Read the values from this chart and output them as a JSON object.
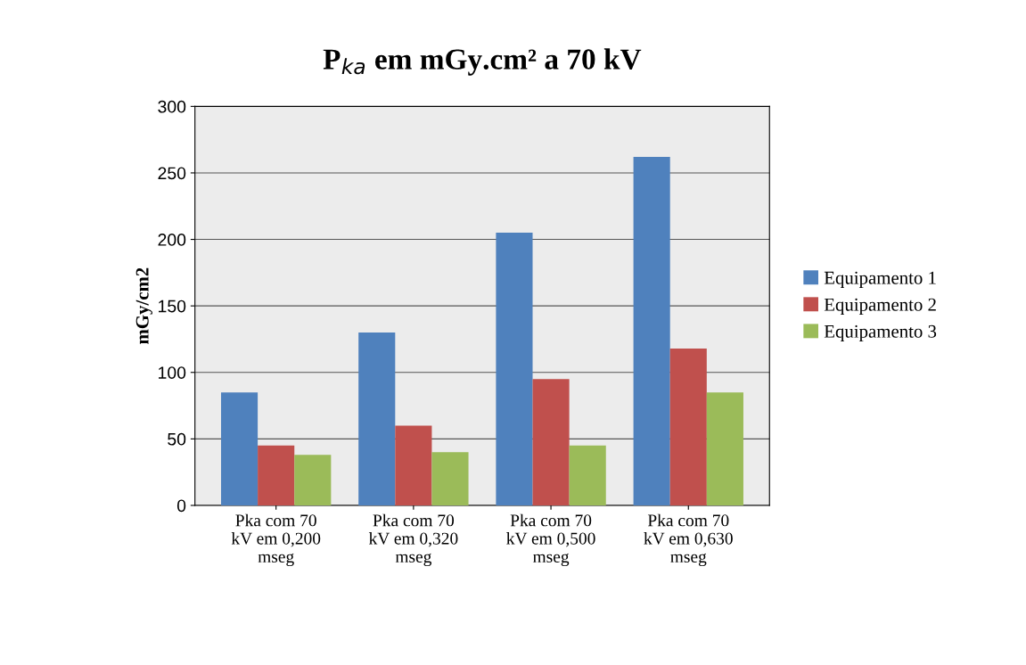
{
  "chart_data": {
    "type": "bar",
    "title": "P$_{ka}$ em mGy.cm² a 70 kV",
    "ylabel": "mGy/cm2",
    "categories": [
      "Pka com 70 kV em 0,200 mseg",
      "Pka com 70 kV em 0,320 mseg",
      "Pka com 70 kV em 0,500 mseg",
      "Pka com 70 kV em 0,630 mseg"
    ],
    "series": [
      {
        "name": "Equipamento 1",
        "color": "#4f81bd",
        "values": [
          85,
          130,
          205,
          262
        ]
      },
      {
        "name": "Equipamento 2",
        "color": "#c0504d",
        "values": [
          45,
          60,
          95,
          118
        ]
      },
      {
        "name": "Equipamento 3",
        "color": "#9bbb59",
        "values": [
          38,
          40,
          45,
          85
        ]
      }
    ],
    "ylim": [
      0,
      300
    ],
    "yticks": [
      0,
      50,
      100,
      150,
      200,
      250,
      300
    ],
    "grid": "y",
    "legend": "right"
  }
}
